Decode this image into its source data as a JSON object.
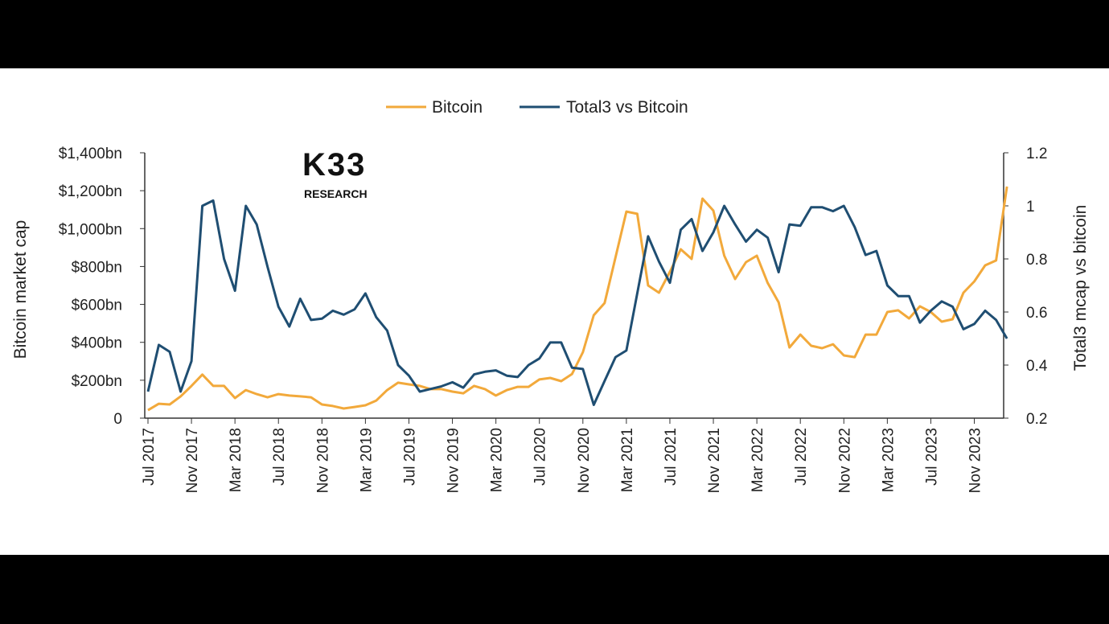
{
  "chart_data": {
    "type": "line",
    "title": "",
    "legend": [
      "Bitcoin",
      "Total3 vs Bitcoin"
    ],
    "legend_position": "top-center",
    "watermark": "K33 RESEARCH",
    "x_start": "Jul 2017",
    "x_tick_labels": [
      "Jul 2017",
      "Nov 2017",
      "Mar 2018",
      "Jul 2018",
      "Nov 2018",
      "Mar 2019",
      "Jul 2019",
      "Nov 2019",
      "Mar 2020",
      "Jul 2020",
      "Nov 2020",
      "Mar 2021",
      "Jul 2021",
      "Nov 2021",
      "Mar 2022",
      "Jul 2022",
      "Nov 2022",
      "Mar 2023",
      "Jul 2023",
      "Nov 2023"
    ],
    "ylabel_left": "Bitcoin market cap",
    "ylabel_right": "Total3 mcap vs bitcoin",
    "ylim_left": [
      0,
      1400
    ],
    "ylim_right": [
      0.2,
      1.2
    ],
    "y_ticks_left": [
      "0",
      "$200bn",
      "$400bn",
      "$600bn",
      "$800bn",
      "$1,000bn",
      "$1,200bn",
      "$1,400bn"
    ],
    "y_ticks_right": [
      "0.2",
      "0.4",
      "0.6",
      "0.8",
      "1",
      "1.2"
    ],
    "grid": false,
    "series": [
      {
        "name": "Bitcoin",
        "axis": "left",
        "color": "#F2A93B",
        "unit": "bn USD",
        "values": [
          42,
          76,
          72,
          115,
          170,
          230,
          170,
          170,
          106,
          148,
          127,
          110,
          127,
          119,
          115,
          110,
          72,
          64,
          51,
          59,
          68,
          93,
          148,
          187,
          178,
          170,
          153,
          153,
          140,
          131,
          170,
          153,
          119,
          148,
          165,
          165,
          204,
          212,
          195,
          233,
          348,
          543,
          607,
          849,
          1090,
          1078,
          700,
          662,
          772,
          891,
          840,
          1158,
          1095,
          857,
          734,
          823,
          857,
          713,
          611,
          373,
          441,
          382,
          369,
          390,
          331,
          322,
          441,
          441,
          560,
          569,
          526,
          590,
          560,
          509,
          522,
          662,
          721,
          806,
          832,
          1222
        ]
      },
      {
        "name": "Total3 vs Bitcoin",
        "axis": "right",
        "color": "#1F4E72",
        "values": [
          0.3,
          0.476,
          0.45,
          0.3,
          0.415,
          1.0,
          1.02,
          0.8,
          0.68,
          1.0,
          0.93,
          0.77,
          0.62,
          0.545,
          0.65,
          0.57,
          0.575,
          0.605,
          0.59,
          0.61,
          0.67,
          0.58,
          0.53,
          0.4,
          0.36,
          0.3,
          0.31,
          0.32,
          0.335,
          0.315,
          0.365,
          0.375,
          0.38,
          0.36,
          0.355,
          0.4,
          0.425,
          0.485,
          0.485,
          0.39,
          0.385,
          0.25,
          0.34,
          0.43,
          0.455,
          0.67,
          0.885,
          0.79,
          0.71,
          0.91,
          0.95,
          0.83,
          0.9,
          1.0,
          0.93,
          0.865,
          0.91,
          0.88,
          0.75,
          0.93,
          0.925,
          0.995,
          0.995,
          0.98,
          1.0,
          0.92,
          0.815,
          0.83,
          0.7,
          0.66,
          0.66,
          0.56,
          0.605,
          0.64,
          0.62,
          0.535,
          0.555,
          0.605,
          0.57,
          0.5
        ]
      }
    ]
  }
}
